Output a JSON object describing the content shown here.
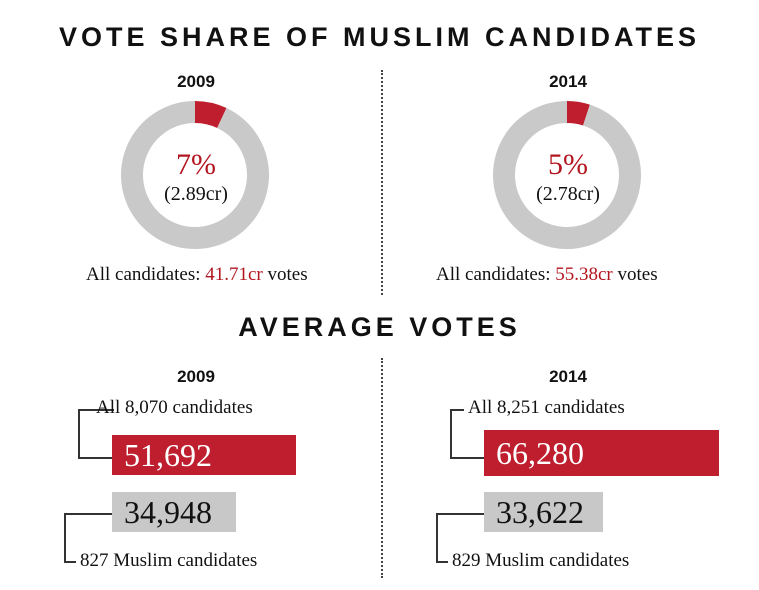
{
  "titles": {
    "vote_share": "VOTE SHARE OF MUSLIM CANDIDATES",
    "average_votes": "AVERAGE VOTES"
  },
  "colors": {
    "accent": "#b3151f",
    "bar_red": "#be1e2d",
    "bar_gray": "#c8c8c8",
    "ring_gray": "#c9c9c9"
  },
  "chart_data": [
    {
      "type": "pie",
      "variant": "donut",
      "title": "2009",
      "slices": [
        {
          "name": "Muslim candidates",
          "value": 7
        },
        {
          "name": "Others",
          "value": 93
        }
      ],
      "center_value": "7%",
      "center_sub": "(2.89cr)",
      "total_prefix": "All candidates: ",
      "total_value": "41.71cr",
      "total_suffix": " votes"
    },
    {
      "type": "pie",
      "variant": "donut",
      "title": "2014",
      "slices": [
        {
          "name": "Muslim candidates",
          "value": 5
        },
        {
          "name": "Others",
          "value": 95
        }
      ],
      "center_value": "5%",
      "center_sub": "(2.78cr)",
      "total_prefix": "All candidates: ",
      "total_value": "55.38cr",
      "total_suffix": " votes"
    },
    {
      "type": "bar",
      "orientation": "horizontal",
      "title": "2009",
      "categories": [
        "All 8,070 candidates",
        "827 Muslim candidates"
      ],
      "values": [
        51692,
        34948
      ],
      "value_labels": [
        "51,692",
        "34,948"
      ]
    },
    {
      "type": "bar",
      "orientation": "horizontal",
      "title": "2014",
      "categories": [
        "All 8,251 candidates",
        "829 Muslim candidates"
      ],
      "values": [
        66280,
        33622
      ],
      "value_labels": [
        "66,280",
        "33,622"
      ]
    }
  ]
}
